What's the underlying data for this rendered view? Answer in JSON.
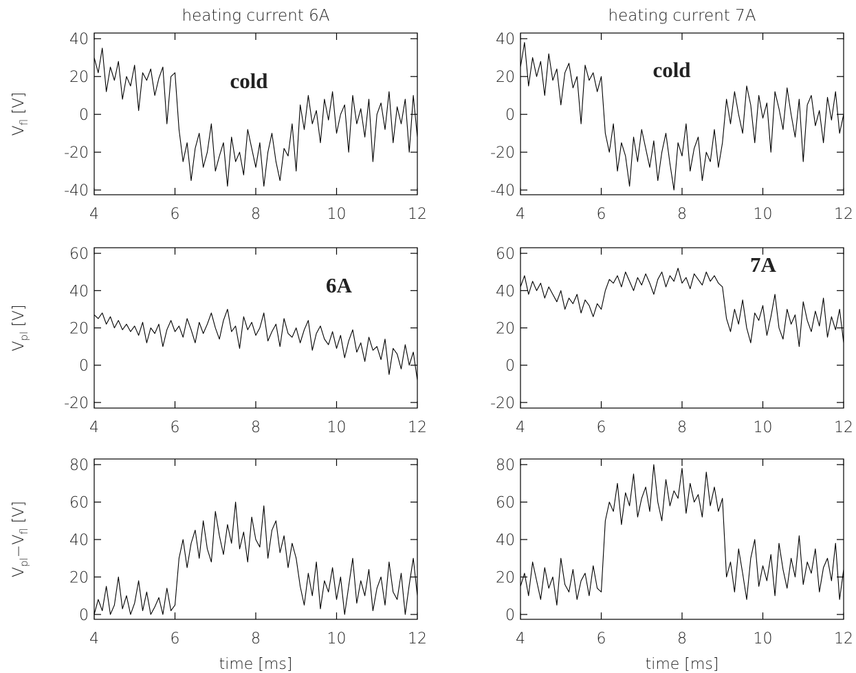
{
  "chart_data": [
    {
      "type": "line",
      "title": "heating current 6A",
      "ylabel": [
        "V",
        "fl",
        " [V]"
      ],
      "color": "#000000",
      "annotations": [
        {
          "text": "cold",
          "color": "#1abf94"
        }
      ],
      "xlim": [
        4,
        12
      ],
      "xticks": [
        4,
        6,
        8,
        10,
        12
      ],
      "ylim": [
        -42.5,
        43
      ],
      "yticks": [
        -40,
        -20,
        0,
        20,
        40
      ],
      "x": [
        4,
        4.1,
        4.2,
        4.3,
        4.4,
        4.5,
        4.6,
        4.7,
        4.8,
        4.9,
        5,
        5.1,
        5.2,
        5.3,
        5.4,
        5.5,
        5.6,
        5.7,
        5.8,
        5.9,
        6,
        6.1,
        6.2,
        6.3,
        6.4,
        6.5,
        6.6,
        6.7,
        6.8,
        6.9,
        7,
        7.1,
        7.2,
        7.3,
        7.4,
        7.5,
        7.6,
        7.7,
        7.8,
        7.9,
        8,
        8.1,
        8.2,
        8.3,
        8.4,
        8.5,
        8.6,
        8.7,
        8.8,
        8.9,
        9,
        9.1,
        9.2,
        9.3,
        9.4,
        9.5,
        9.6,
        9.7,
        9.8,
        9.9,
        10,
        10.1,
        10.2,
        10.3,
        10.4,
        10.5,
        10.6,
        10.7,
        10.8,
        10.9,
        11,
        11.1,
        11.2,
        11.3,
        11.4,
        11.5,
        11.6,
        11.7,
        11.8,
        11.9,
        12
      ],
      "values": [
        30,
        22,
        35,
        12,
        25,
        18,
        28,
        8,
        20,
        15,
        26,
        2,
        22,
        18,
        24,
        10,
        19,
        25,
        -5,
        20,
        22,
        -8,
        -25,
        -15,
        -35,
        -18,
        -10,
        -28,
        -20,
        -5,
        -30,
        -22,
        -15,
        -38,
        -12,
        -25,
        -20,
        -32,
        -8,
        -18,
        -28,
        -15,
        -38,
        -20,
        -10,
        -25,
        -35,
        -18,
        -22,
        -5,
        -30,
        5,
        -8,
        10,
        -5,
        2,
        -15,
        8,
        -3,
        12,
        -10,
        0,
        5,
        -20,
        10,
        -5,
        3,
        -12,
        8,
        -25,
        0,
        6,
        -8,
        12,
        -15,
        4,
        -5,
        8,
        -20,
        10,
        -12
      ]
    },
    {
      "type": "line",
      "title": "heating current 7A",
      "color": "#000000",
      "annotations": [
        {
          "text": "cold",
          "color": "#1abf94"
        }
      ],
      "xlim": [
        4,
        12
      ],
      "xticks": [
        4,
        6,
        8,
        10,
        12
      ],
      "ylim": [
        -42.5,
        43
      ],
      "yticks": [
        -40,
        -20,
        0,
        20,
        40
      ],
      "x": [
        4,
        4.1,
        4.2,
        4.3,
        4.4,
        4.5,
        4.6,
        4.7,
        4.8,
        4.9,
        5,
        5.1,
        5.2,
        5.3,
        5.4,
        5.5,
        5.6,
        5.7,
        5.8,
        5.9,
        6,
        6.1,
        6.2,
        6.3,
        6.4,
        6.5,
        6.6,
        6.7,
        6.8,
        6.9,
        7,
        7.1,
        7.2,
        7.3,
        7.4,
        7.5,
        7.6,
        7.7,
        7.8,
        7.9,
        8,
        8.1,
        8.2,
        8.3,
        8.4,
        8.5,
        8.6,
        8.7,
        8.8,
        8.9,
        9,
        9.1,
        9.2,
        9.3,
        9.4,
        9.5,
        9.6,
        9.7,
        9.8,
        9.9,
        10,
        10.1,
        10.2,
        10.3,
        10.4,
        10.5,
        10.6,
        10.7,
        10.8,
        10.9,
        11,
        11.1,
        11.2,
        11.3,
        11.4,
        11.5,
        11.6,
        11.7,
        11.8,
        11.9,
        12
      ],
      "values": [
        25,
        38,
        15,
        30,
        20,
        28,
        10,
        32,
        18,
        24,
        5,
        22,
        27,
        14,
        20,
        -5,
        26,
        18,
        22,
        12,
        20,
        -10,
        -20,
        -5,
        -30,
        -15,
        -22,
        -38,
        -12,
        -25,
        -8,
        -18,
        -28,
        -14,
        -35,
        -20,
        -10,
        -26,
        -40,
        -15,
        -22,
        -5,
        -30,
        -18,
        -12,
        -35,
        -20,
        -25,
        -8,
        -28,
        -15,
        8,
        -5,
        12,
        0,
        -10,
        15,
        5,
        -15,
        10,
        -2,
        6,
        -20,
        12,
        3,
        -8,
        14,
        0,
        -12,
        8,
        -25,
        5,
        10,
        -6,
        2,
        -15,
        9,
        -3,
        12,
        -10,
        0
      ]
    },
    {
      "type": "line",
      "ylabel": [
        "V",
        "pl",
        " [V]"
      ],
      "color": "#000000",
      "annotations": [
        {
          "text": "6A",
          "color": "#ee1111"
        }
      ],
      "xlim": [
        4,
        12
      ],
      "xticks": [
        4,
        6,
        8,
        10,
        12
      ],
      "ylim": [
        -23,
        63
      ],
      "yticks": [
        -20,
        0,
        20,
        40,
        60
      ],
      "x": [
        4,
        4.1,
        4.2,
        4.3,
        4.4,
        4.5,
        4.6,
        4.7,
        4.8,
        4.9,
        5,
        5.1,
        5.2,
        5.3,
        5.4,
        5.5,
        5.6,
        5.7,
        5.8,
        5.9,
        6,
        6.1,
        6.2,
        6.3,
        6.4,
        6.5,
        6.6,
        6.7,
        6.8,
        6.9,
        7,
        7.1,
        7.2,
        7.3,
        7.4,
        7.5,
        7.6,
        7.7,
        7.8,
        7.9,
        8,
        8.1,
        8.2,
        8.3,
        8.4,
        8.5,
        8.6,
        8.7,
        8.8,
        8.9,
        9,
        9.1,
        9.2,
        9.3,
        9.4,
        9.5,
        9.6,
        9.7,
        9.8,
        9.9,
        10,
        10.1,
        10.2,
        10.3,
        10.4,
        10.5,
        10.6,
        10.7,
        10.8,
        10.9,
        11,
        11.1,
        11.2,
        11.3,
        11.4,
        11.5,
        11.6,
        11.7,
        11.8,
        11.9,
        12
      ],
      "values": [
        27,
        25,
        28,
        22,
        26,
        20,
        24,
        19,
        22,
        18,
        21,
        16,
        23,
        12,
        20,
        17,
        22,
        10,
        19,
        24,
        18,
        21,
        15,
        25,
        19,
        12,
        23,
        17,
        22,
        28,
        20,
        14,
        24,
        30,
        18,
        21,
        9,
        26,
        19,
        23,
        16,
        20,
        28,
        13,
        18,
        22,
        10,
        25,
        17,
        15,
        20,
        12,
        19,
        24,
        8,
        17,
        21,
        14,
        11,
        18,
        9,
        16,
        4,
        13,
        19,
        7,
        12,
        2,
        15,
        8,
        10,
        3,
        14,
        -5,
        9,
        6,
        -2,
        11,
        0,
        7,
        -8
      ]
    },
    {
      "type": "line",
      "color": "#000000",
      "annotations": [
        {
          "text": "7A",
          "color": "#ee1111"
        }
      ],
      "xlim": [
        4,
        12
      ],
      "xticks": [
        4,
        6,
        8,
        10,
        12
      ],
      "ylim": [
        -23,
        63
      ],
      "yticks": [
        -20,
        0,
        20,
        40,
        60
      ],
      "x": [
        4,
        4.1,
        4.2,
        4.3,
        4.4,
        4.5,
        4.6,
        4.7,
        4.8,
        4.9,
        5,
        5.1,
        5.2,
        5.3,
        5.4,
        5.5,
        5.6,
        5.7,
        5.8,
        5.9,
        6,
        6.1,
        6.2,
        6.3,
        6.4,
        6.5,
        6.6,
        6.7,
        6.8,
        6.9,
        7,
        7.1,
        7.2,
        7.3,
        7.4,
        7.5,
        7.6,
        7.7,
        7.8,
        7.9,
        8,
        8.1,
        8.2,
        8.3,
        8.4,
        8.5,
        8.6,
        8.7,
        8.8,
        8.9,
        9,
        9.1,
        9.2,
        9.3,
        9.4,
        9.5,
        9.6,
        9.7,
        9.8,
        9.9,
        10,
        10.1,
        10.2,
        10.3,
        10.4,
        10.5,
        10.6,
        10.7,
        10.8,
        10.9,
        11,
        11.1,
        11.2,
        11.3,
        11.4,
        11.5,
        11.6,
        11.7,
        11.8,
        11.9,
        12
      ],
      "values": [
        42,
        48,
        38,
        45,
        40,
        44,
        36,
        42,
        38,
        34,
        40,
        30,
        36,
        33,
        38,
        28,
        35,
        32,
        26,
        33,
        30,
        40,
        46,
        44,
        48,
        42,
        50,
        45,
        40,
        47,
        43,
        49,
        44,
        38,
        46,
        50,
        42,
        48,
        45,
        52,
        44,
        47,
        41,
        49,
        46,
        43,
        50,
        45,
        48,
        44,
        42,
        25,
        18,
        30,
        22,
        35,
        20,
        12,
        28,
        24,
        32,
        16,
        26,
        38,
        20,
        14,
        30,
        22,
        27,
        10,
        34,
        24,
        18,
        29,
        21,
        36,
        15,
        26,
        19,
        30,
        12
      ]
    },
    {
      "type": "line",
      "ylabel": [
        "V",
        "pl",
        "−V",
        "fl",
        " [V]"
      ],
      "xlabel": "time [ms]",
      "color": "#000000",
      "xlim": [
        4,
        12
      ],
      "xticks": [
        4,
        6,
        8,
        10,
        12
      ],
      "ylim": [
        -2.6,
        83
      ],
      "yticks": [
        0,
        20,
        40,
        60,
        80
      ],
      "x": [
        4,
        4.1,
        4.2,
        4.3,
        4.4,
        4.5,
        4.6,
        4.7,
        4.8,
        4.9,
        5,
        5.1,
        5.2,
        5.3,
        5.4,
        5.5,
        5.6,
        5.7,
        5.8,
        5.9,
        6,
        6.1,
        6.2,
        6.3,
        6.4,
        6.5,
        6.6,
        6.7,
        6.8,
        6.9,
        7,
        7.1,
        7.2,
        7.3,
        7.4,
        7.5,
        7.6,
        7.7,
        7.8,
        7.9,
        8,
        8.1,
        8.2,
        8.3,
        8.4,
        8.5,
        8.6,
        8.7,
        8.8,
        8.9,
        9,
        9.1,
        9.2,
        9.3,
        9.4,
        9.5,
        9.6,
        9.7,
        9.8,
        9.9,
        10,
        10.1,
        10.2,
        10.3,
        10.4,
        10.5,
        10.6,
        10.7,
        10.8,
        10.9,
        11,
        11.1,
        11.2,
        11.3,
        11.4,
        11.5,
        11.6,
        11.7,
        11.8,
        11.9,
        12
      ],
      "values": [
        0,
        8,
        2,
        15,
        0,
        5,
        20,
        3,
        10,
        0,
        6,
        18,
        2,
        12,
        0,
        4,
        9,
        0,
        14,
        2,
        5,
        30,
        40,
        25,
        38,
        45,
        30,
        50,
        35,
        28,
        55,
        42,
        32,
        48,
        38,
        60,
        35,
        44,
        28,
        52,
        40,
        36,
        58,
        30,
        45,
        50,
        33,
        42,
        25,
        38,
        30,
        15,
        5,
        22,
        10,
        28,
        3,
        18,
        12,
        25,
        8,
        20,
        0,
        15,
        30,
        6,
        18,
        10,
        24,
        2,
        14,
        20,
        5,
        28,
        12,
        8,
        22,
        0,
        16,
        30,
        10
      ]
    },
    {
      "type": "line",
      "xlabel": "time [ms]",
      "color": "#000000",
      "xlim": [
        4,
        12
      ],
      "xticks": [
        4,
        6,
        8,
        10,
        12
      ],
      "ylim": [
        -2.6,
        83
      ],
      "yticks": [
        0,
        20,
        40,
        60,
        80
      ],
      "x": [
        4,
        4.1,
        4.2,
        4.3,
        4.4,
        4.5,
        4.6,
        4.7,
        4.8,
        4.9,
        5,
        5.1,
        5.2,
        5.3,
        5.4,
        5.5,
        5.6,
        5.7,
        5.8,
        5.9,
        6,
        6.1,
        6.2,
        6.3,
        6.4,
        6.5,
        6.6,
        6.7,
        6.8,
        6.9,
        7,
        7.1,
        7.2,
        7.3,
        7.4,
        7.5,
        7.6,
        7.7,
        7.8,
        7.9,
        8,
        8.1,
        8.2,
        8.3,
        8.4,
        8.5,
        8.6,
        8.7,
        8.8,
        8.9,
        9,
        9.1,
        9.2,
        9.3,
        9.4,
        9.5,
        9.6,
        9.7,
        9.8,
        9.9,
        10,
        10.1,
        10.2,
        10.3,
        10.4,
        10.5,
        10.6,
        10.7,
        10.8,
        10.9,
        11,
        11.1,
        11.2,
        11.3,
        11.4,
        11.5,
        11.6,
        11.7,
        11.8,
        11.9,
        12
      ],
      "values": [
        15,
        22,
        10,
        28,
        18,
        8,
        25,
        14,
        20,
        5,
        30,
        16,
        12,
        24,
        8,
        18,
        22,
        10,
        26,
        14,
        12,
        50,
        60,
        55,
        70,
        48,
        65,
        58,
        75,
        52,
        62,
        68,
        55,
        80,
        60,
        50,
        72,
        58,
        66,
        62,
        78,
        54,
        70,
        60,
        64,
        52,
        76,
        58,
        68,
        55,
        62,
        20,
        28,
        12,
        35,
        22,
        8,
        30,
        40,
        15,
        26,
        18,
        32,
        10,
        38,
        24,
        14,
        30,
        20,
        42,
        16,
        28,
        22,
        35,
        12,
        25,
        30,
        18,
        38,
        8,
        24
      ]
    }
  ]
}
